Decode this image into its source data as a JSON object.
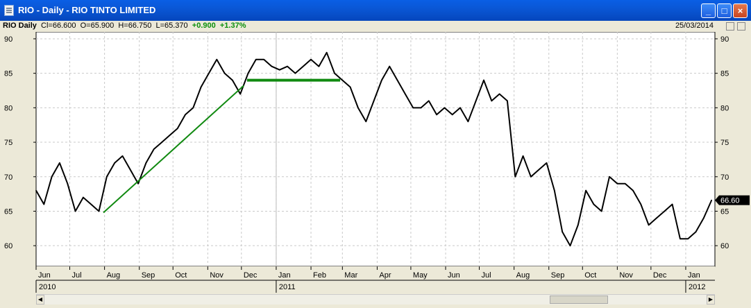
{
  "window": {
    "title": "RIO - Daily - RIO TINTO LIMITED",
    "buttons": [
      "_",
      "□",
      "×"
    ]
  },
  "infobar": {
    "symbol": "RIO",
    "period": "Daily",
    "values": "Cl=66.600  O=65.900  H=66.750  L=65.370",
    "change": "+0.900",
    "change_pct": "+1.37%",
    "date": "25/03/2014"
  },
  "colors": {
    "price": "#000000",
    "trendline": "#118a11",
    "grid": "#c9c9c9",
    "last_label_bg": "#000000"
  },
  "chart_data": {
    "type": "line",
    "ylim": [
      57,
      91
    ],
    "yticks": [
      60,
      65,
      70,
      75,
      80,
      85,
      90
    ],
    "grid": true,
    "last_value_label": "66.60",
    "month_labels": [
      "Jun",
      "Jul",
      "Aug",
      "Sep",
      "Oct",
      "Nov",
      "Dec",
      "Jan",
      "Feb",
      "Mar",
      "Apr",
      "May",
      "Jun",
      "Jul",
      "Aug",
      "Sep",
      "Oct",
      "Nov",
      "Dec",
      "Jan"
    ],
    "year_labels": [
      "2010",
      "2011",
      "2012"
    ],
    "series": [
      {
        "name": "",
        "x": [
          "2010-06-01",
          "2010-06-08",
          "2010-06-15",
          "2010-06-22",
          "2010-06-29",
          "2010-07-06",
          "2010-07-13",
          "2010-07-20",
          "2010-07-27",
          "2010-08-03",
          "2010-08-10",
          "2010-08-17",
          "2010-08-24",
          "2010-08-31",
          "2010-09-07",
          "2010-09-14",
          "2010-09-21",
          "2010-09-28",
          "2010-10-05",
          "2010-10-12",
          "2010-10-19",
          "2010-10-26",
          "2010-11-02",
          "2010-11-09",
          "2010-11-16",
          "2010-11-23",
          "2010-11-30",
          "2010-12-07",
          "2010-12-14",
          "2010-12-21",
          "2010-12-28",
          "2011-01-04",
          "2011-01-11",
          "2011-01-18",
          "2011-01-25",
          "2011-02-01",
          "2011-02-08",
          "2011-02-15",
          "2011-02-22",
          "2011-03-01",
          "2011-03-08",
          "2011-03-15",
          "2011-03-22",
          "2011-03-29",
          "2011-04-05",
          "2011-04-12",
          "2011-04-19",
          "2011-04-26",
          "2011-05-03",
          "2011-05-10",
          "2011-05-17",
          "2011-05-24",
          "2011-05-31",
          "2011-06-07",
          "2011-06-14",
          "2011-06-21",
          "2011-06-28",
          "2011-07-05",
          "2011-07-12",
          "2011-07-19",
          "2011-07-26",
          "2011-08-02",
          "2011-08-09",
          "2011-08-16",
          "2011-08-23",
          "2011-08-30",
          "2011-09-06",
          "2011-09-13",
          "2011-09-20",
          "2011-09-27",
          "2011-10-04",
          "2011-10-11",
          "2011-10-18",
          "2011-10-25",
          "2011-11-01",
          "2011-11-08",
          "2011-11-15",
          "2011-11-22",
          "2011-11-29",
          "2011-12-06",
          "2011-12-13",
          "2011-12-20",
          "2011-12-27",
          "2012-01-03",
          "2012-01-10",
          "2012-01-17",
          "2012-01-24"
        ],
        "values": [
          68,
          66,
          70,
          72,
          69,
          65,
          67,
          66,
          65,
          70,
          72,
          73,
          71,
          69,
          72,
          74,
          75,
          76,
          77,
          79,
          80,
          83,
          85,
          87,
          85,
          84,
          82,
          85,
          87,
          87,
          86,
          85.5,
          86,
          85,
          86,
          87,
          86,
          88,
          85,
          84,
          83,
          80,
          78,
          81,
          84,
          86,
          84,
          82,
          80,
          80,
          81,
          79,
          80,
          79,
          80,
          78,
          81,
          84,
          81,
          82,
          81,
          70,
          73,
          70,
          71,
          72,
          68,
          62,
          60,
          63,
          68,
          66,
          65,
          70,
          69,
          69,
          68,
          66,
          63,
          64,
          65,
          66,
          61,
          61,
          62,
          64,
          66.6
        ]
      }
    ],
    "annotations": [
      {
        "type": "trendline",
        "x": [
          "2010-07-31",
          "2010-12-03"
        ],
        "y": [
          64.8,
          83.2
        ]
      },
      {
        "type": "hline",
        "x": [
          "2010-12-06",
          "2011-02-27"
        ],
        "y": [
          84,
          84
        ]
      }
    ]
  }
}
